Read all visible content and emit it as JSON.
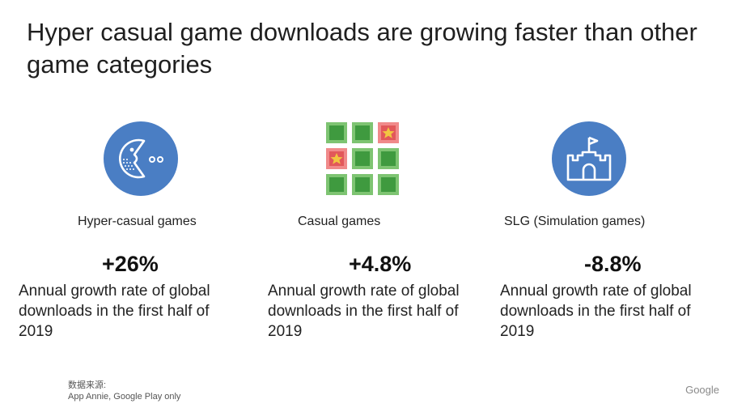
{
  "title": "Hyper casual game downloads are growing faster than other game categories",
  "categories": [
    {
      "label": "Hyper-casual games",
      "stat": "+26%",
      "description": "Annual growth rate of global downloads in the first half of 2019",
      "icon": "pacman-icon"
    },
    {
      "label": "Casual games",
      "stat": "+4.8%",
      "description": "Annual growth rate of global downloads in the first half of 2019",
      "icon": "match-grid-icon"
    },
    {
      "label": "SLG (Simulation games)",
      "stat": "-8.8%",
      "description": "Annual growth rate of global downloads in the first half of 2019",
      "icon": "castle-icon"
    }
  ],
  "source": {
    "heading": "数据来源:",
    "text": "App Annie, Google Play only"
  },
  "brand": "Google",
  "colors": {
    "icon_blue": "#4a7ec4",
    "tile_green_light": "#7ec472",
    "tile_green_dark": "#3f9a3f",
    "tile_red": "#e2585a",
    "star_yellow": "#f2c541"
  }
}
